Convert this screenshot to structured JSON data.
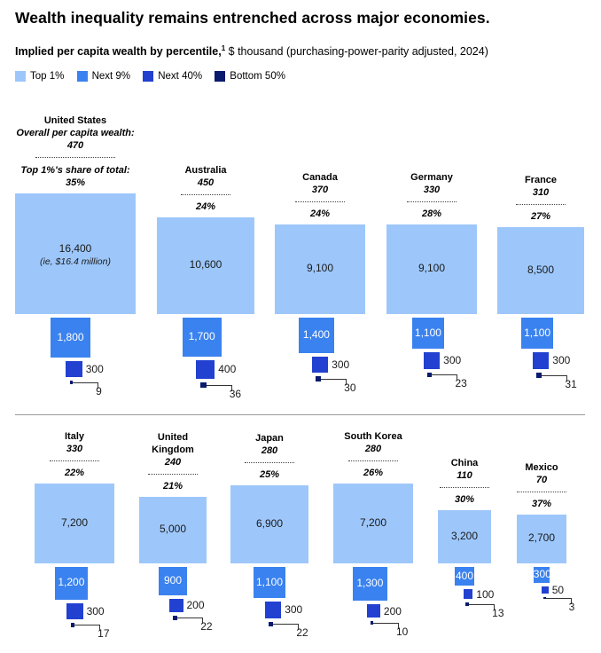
{
  "title": "Wealth inequality remains entrenched across major economies.",
  "subtitle": {
    "bold": "Implied per capita wealth by percentile,",
    "footnote": "1",
    "rest": " $ thousand (purchasing-power-parity adjusted, 2024)"
  },
  "colors": {
    "top1": "#9dc7fb",
    "next9": "#3a82ef",
    "next40": "#2241d0",
    "bottom50": "#0a1a6c"
  },
  "legend": [
    "Top 1%",
    "Next 9%",
    "Next 40%",
    "Bottom 50%"
  ],
  "labels": {
    "overall": "Overall per capita wealth:",
    "share": "Top 1%'s share of total:",
    "us_note": "(ie, $16.4 million)"
  },
  "chart_data": {
    "type": "area-proportional squares",
    "unit": "$ thousand",
    "series": [
      "Top 1%",
      "Next 9%",
      "Next 40%",
      "Bottom 50%"
    ],
    "countries": [
      {
        "name": "United States",
        "overall": "470",
        "share": "35%",
        "top1": "16,400",
        "next9": "1,800",
        "next40": "300",
        "bottom50": "9",
        "values": [
          16400,
          1800,
          300,
          9
        ]
      },
      {
        "name": "Australia",
        "overall": "450",
        "share": "24%",
        "top1": "10,600",
        "next9": "1,700",
        "next40": "400",
        "bottom50": "36",
        "values": [
          10600,
          1700,
          400,
          36
        ]
      },
      {
        "name": "Canada",
        "overall": "370",
        "share": "24%",
        "top1": "9,100",
        "next9": "1,400",
        "next40": "300",
        "bottom50": "30",
        "values": [
          9100,
          1400,
          300,
          30
        ]
      },
      {
        "name": "Germany",
        "overall": "330",
        "share": "28%",
        "top1": "9,100",
        "next9": "1,100",
        "next40": "300",
        "bottom50": "23",
        "values": [
          9100,
          1100,
          300,
          23
        ]
      },
      {
        "name": "France",
        "overall": "310",
        "share": "27%",
        "top1": "8,500",
        "next9": "1,100",
        "next40": "300",
        "bottom50": "31",
        "values": [
          8500,
          1100,
          300,
          31
        ]
      },
      {
        "name": "Italy",
        "overall": "330",
        "share": "22%",
        "top1": "7,200",
        "next9": "1,200",
        "next40": "300",
        "bottom50": "17",
        "values": [
          7200,
          1200,
          300,
          17
        ]
      },
      {
        "name": "United\nKingdom",
        "overall": "240",
        "share": "21%",
        "top1": "5,000",
        "next9": "900",
        "next40": "200",
        "bottom50": "22",
        "values": [
          5000,
          900,
          200,
          22
        ]
      },
      {
        "name": "Japan",
        "overall": "280",
        "share": "25%",
        "top1": "6,900",
        "next9": "1,100",
        "next40": "300",
        "bottom50": "22",
        "values": [
          6900,
          1100,
          300,
          22
        ]
      },
      {
        "name": "South Korea",
        "overall": "280",
        "share": "26%",
        "top1": "7,200",
        "next9": "1,300",
        "next40": "200",
        "bottom50": "10",
        "values": [
          7200,
          1300,
          200,
          10
        ]
      },
      {
        "name": "China",
        "overall": "110",
        "share": "30%",
        "top1": "3,200",
        "next9": "400",
        "next40": "100",
        "bottom50": "13",
        "values": [
          3200,
          400,
          100,
          13
        ]
      },
      {
        "name": "Mexico",
        "overall": "70",
        "share": "37%",
        "top1": "2,700",
        "next9": "300",
        "next40": "50",
        "bottom50": "3",
        "values": [
          2700,
          300,
          50,
          3
        ]
      }
    ]
  }
}
